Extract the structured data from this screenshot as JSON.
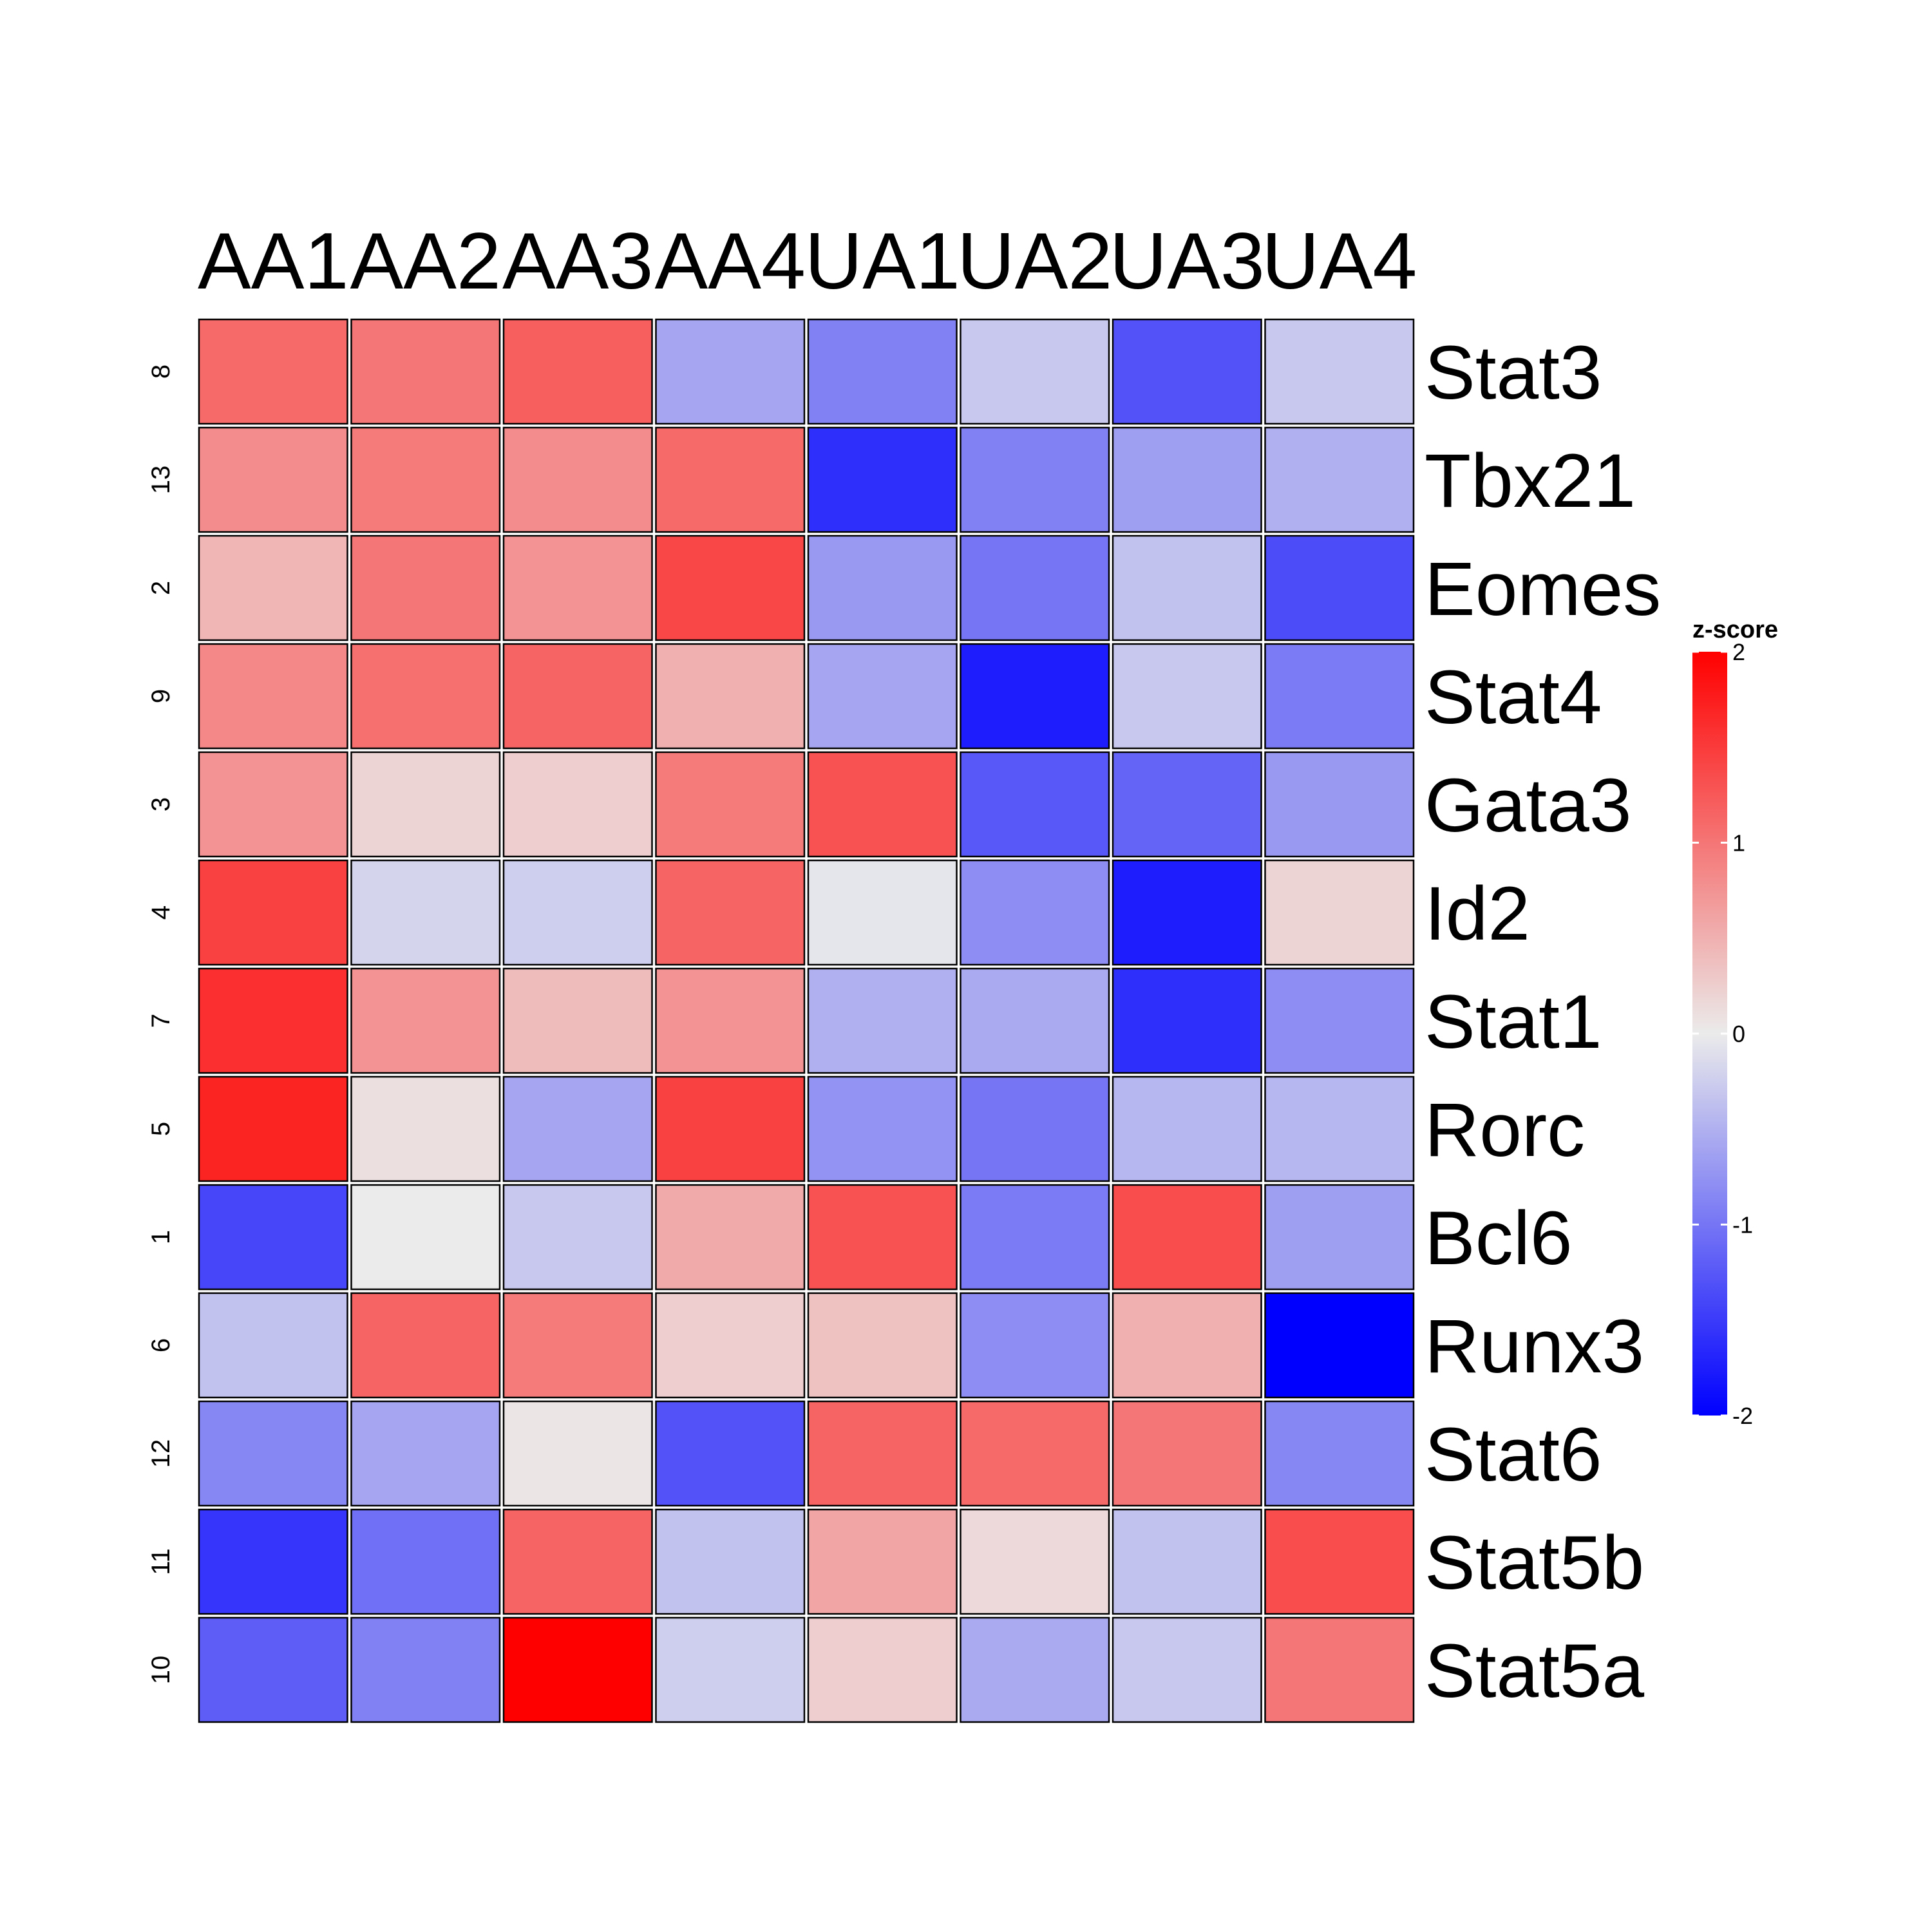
{
  "chart_data": {
    "type": "heatmap",
    "title": "",
    "columns": [
      "AA1",
      "AA2",
      "AA3",
      "AA4",
      "UA1",
      "UA2",
      "UA3",
      "UA4"
    ],
    "row_ids": [
      "8",
      "13",
      "2",
      "9",
      "3",
      "4",
      "7",
      "5",
      "1",
      "6",
      "12",
      "11",
      "10"
    ],
    "rows": [
      "Stat3",
      "Tbx21",
      "Eomes",
      "Stat4",
      "Gata3",
      "Id2",
      "Stat1",
      "Rorc",
      "Bcl6",
      "Runx3",
      "Stat6",
      "Stat5b",
      "Stat5a"
    ],
    "values": [
      [
        1.1,
        1.0,
        1.2,
        -0.6,
        -0.9,
        -0.3,
        -1.3,
        -0.3
      ],
      [
        0.8,
        0.95,
        0.8,
        1.1,
        -1.6,
        -0.9,
        -0.65,
        -0.5
      ],
      [
        0.45,
        1.0,
        0.75,
        1.4,
        -0.7,
        -1.0,
        -0.35,
        -1.35
      ],
      [
        0.85,
        1.05,
        1.15,
        0.5,
        -0.6,
        -1.75,
        -0.3,
        -0.95
      ],
      [
        0.75,
        0.2,
        0.25,
        0.95,
        1.3,
        -1.25,
        -1.15,
        -0.7
      ],
      [
        1.45,
        -0.2,
        -0.25,
        1.15,
        -0.05,
        -0.8,
        -1.75,
        0.2
      ],
      [
        1.6,
        0.75,
        0.4,
        0.75,
        -0.5,
        -0.55,
        -1.6,
        -0.8
      ],
      [
        1.7,
        0.1,
        -0.6,
        1.45,
        -0.75,
        -1.0,
        -0.45,
        -0.45
      ],
      [
        -1.4,
        0.0,
        -0.3,
        0.55,
        1.3,
        -0.95,
        1.35,
        -0.65
      ],
      [
        -0.35,
        1.15,
        0.95,
        0.25,
        0.35,
        -0.8,
        0.5,
        -2.0
      ],
      [
        -0.85,
        -0.6,
        0.05,
        -1.3,
        1.15,
        1.1,
        1.0,
        -0.85
      ],
      [
        -1.55,
        -1.05,
        1.15,
        -0.35,
        0.6,
        0.15,
        -0.35,
        1.35
      ],
      [
        -1.2,
        -0.9,
        2.0,
        -0.25,
        0.25,
        -0.55,
        -0.3,
        1.0
      ]
    ],
    "legend": {
      "title": "z-score",
      "ticks": [
        2,
        1,
        0,
        -1,
        -2
      ],
      "tick_labels": [
        "2",
        "1",
        "0",
        "-1",
        "-2"
      ],
      "range": [
        -2,
        2
      ],
      "placement": "right"
    },
    "colors": {
      "low": "#0000ff",
      "mid": "#ebebeb",
      "high": "#ff0000",
      "border": "#000000"
    }
  }
}
